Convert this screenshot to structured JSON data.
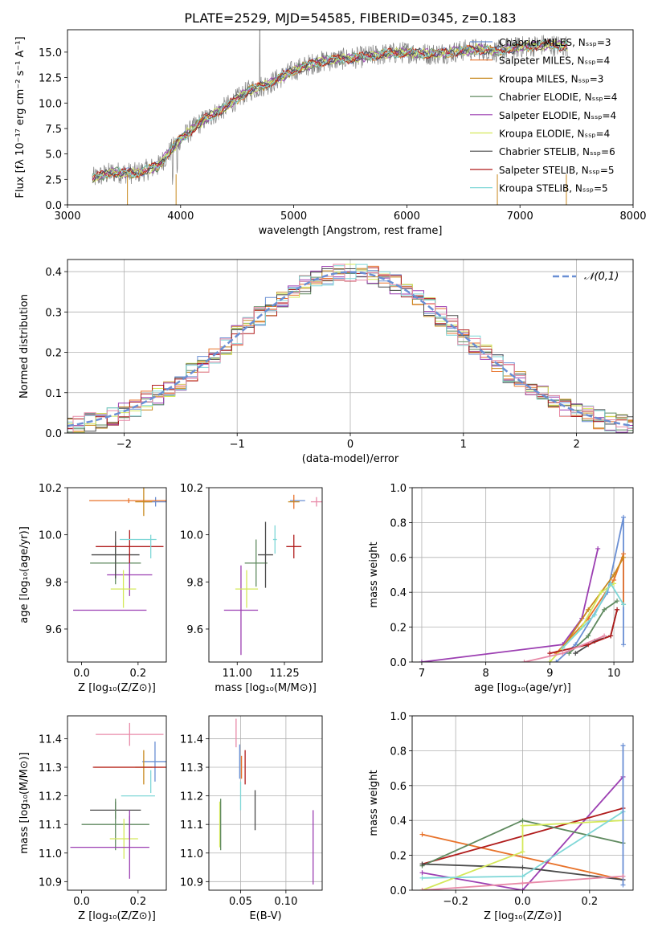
{
  "title": "PLATE=2529, MJD=54585, FIBERID=0345, z=0.183",
  "colors": {
    "Chabrier MILES": "#6a8fd4",
    "Salpeter MILES": "#e8722a",
    "Kroupa MILES": "#c8891e",
    "Chabrier ELODIE": "#5f8a5f",
    "Salpeter ELODIE": "#9c3fb2",
    "Kroupa ELODIE": "#d4e85a",
    "Chabrier STELIB": "#4a4a4a",
    "Salpeter STELIB": "#b01c1c",
    "Kroupa STELIB": "#7fd7d7",
    "pink": "#e88aa8",
    "normal_curve": "#6a8fd4"
  },
  "chart_data": [
    {
      "id": "spectrum",
      "type": "line",
      "xlabel": "wavelength [Angstrom, rest frame]",
      "ylabel": "Flux [fλ 10⁻¹⁷ erg cm⁻² s⁻¹ A⁻¹]",
      "xlim": [
        3000,
        8000
      ],
      "ylim": [
        0,
        17.2
      ],
      "xticks": [
        "3000",
        "4000",
        "5000",
        "6000",
        "7000",
        "8000"
      ],
      "yticks": [
        "0.0",
        "2.5",
        "5.0",
        "7.5",
        "10.0",
        "12.5",
        "15.0"
      ],
      "legend_position": "top-right",
      "legend": [
        "Chabrier MILES, Nₛₛₚ=3",
        "Salpeter MILES, Nₛₛₚ=4",
        "Kroupa MILES, Nₛₛₚ=3",
        "Chabrier ELODIE, Nₛₛₚ=4",
        "Salpeter ELODIE, Nₛₛₚ=4",
        "Kroupa ELODIE, Nₛₛₚ=4",
        "Chabrier STELIB, Nₛₛₚ=6",
        "Salpeter STELIB, Nₛₛₚ=5",
        "Kroupa STELIB, Nₛₛₚ=5"
      ],
      "continuum": {
        "x": [
          3220,
          3400,
          3600,
          3800,
          4000,
          4200,
          4400,
          4600,
          4800,
          5000,
          5200,
          5400,
          5600,
          5800,
          6000,
          6200,
          6400,
          6600,
          6800,
          7000,
          7200,
          7400
        ],
        "y": [
          2.6,
          3.2,
          3.1,
          3.8,
          6.5,
          8.3,
          9.6,
          11.2,
          12.0,
          13.2,
          14.0,
          14.3,
          14.5,
          14.8,
          15.0,
          14.8,
          15.0,
          15.3,
          15.1,
          15.5,
          15.7,
          15.6
        ]
      }
    },
    {
      "id": "residuals",
      "type": "histogram",
      "xlabel": "(data-model)/error",
      "ylabel": "Normed distribution",
      "xlim": [
        -2.5,
        2.5
      ],
      "ylim": [
        0,
        0.43
      ],
      "xticks": [
        "−2",
        "−1",
        "0",
        "1",
        "2"
      ],
      "yticks": [
        "0.0",
        "0.1",
        "0.2",
        "0.3",
        "0.4"
      ],
      "legend_position": "top-right",
      "legend": [
        "𝒩(0,1)"
      ],
      "bin_width": 0.1
    },
    {
      "id": "age-vs-Z",
      "type": "errorbar",
      "xlabel": "Z [log₁₀(Z/Z⊙)]",
      "ylabel": "age  [log₁₀(age/yr)]",
      "xlim": [
        -0.05,
        0.3
      ],
      "ylim": [
        9.46,
        10.2
      ],
      "xticks": [
        "0.0",
        "0.2"
      ],
      "xtick_values": [
        0.0,
        0.2
      ],
      "yticks": [
        "9.6",
        "9.8",
        "10.0",
        "10.2"
      ],
      "ytick_values": [
        9.6,
        9.8,
        10.0,
        10.2
      ],
      "points": [
        {
          "c": "Chabrier MILES",
          "x": 0.262,
          "xe": 0.045,
          "y": 10.14,
          "ye": 0.02
        },
        {
          "c": "Salpeter MILES",
          "x": 0.167,
          "xe": 0.14,
          "y": 10.145,
          "ye": 0.01
        },
        {
          "c": "Kroupa MILES",
          "x": 0.22,
          "xe": 0.03,
          "y": 10.14,
          "ye": 0.06
        },
        {
          "c": "Chabrier ELODIE",
          "x": 0.12,
          "xe": 0.09,
          "y": 9.88,
          "ye": 0.09
        },
        {
          "c": "Salpeter ELODIE",
          "x": 0.17,
          "xe": 0.08,
          "y": 9.83,
          "ye": 0.09
        },
        {
          "c": "Salpeter ELODIE",
          "x": 0.1,
          "xe": 0.13,
          "y": 9.68,
          "ye": 0.0
        },
        {
          "c": "Kroupa ELODIE",
          "x": 0.148,
          "xe": 0.045,
          "y": 9.77,
          "ye": 0.08
        },
        {
          "c": "Chabrier STELIB",
          "x": 0.12,
          "xe": 0.085,
          "y": 9.915,
          "ye": 0.1
        },
        {
          "c": "Salpeter STELIB",
          "x": 0.17,
          "xe": 0.12,
          "y": 9.95,
          "ye": 0.0
        },
        {
          "c": "Salpeter STELIB",
          "x": 0.17,
          "xe": 0.0,
          "y": 9.95,
          "ye": 0.07
        },
        {
          "c": "Kroupa STELIB",
          "x": 0.2,
          "xe": 0.065,
          "y": 9.98,
          "ye": 0.0
        },
        {
          "c": "Kroupa STELIB",
          "x": 0.245,
          "xe": 0.0,
          "y": 9.95,
          "ye": 0.05
        }
      ]
    },
    {
      "id": "age-vs-mass",
      "type": "errorbar",
      "xlabel": "mass [log₁₀(M/M⊙)]",
      "ylabel": "",
      "xlim": [
        10.85,
        11.45
      ],
      "ylim": [
        9.46,
        10.2
      ],
      "xticks": [
        "11.00",
        "11.25"
      ],
      "xtick_values": [
        11.0,
        11.25
      ],
      "yticks": [
        "9.6",
        "9.8",
        "10.0",
        "10.2"
      ],
      "ytick_values": [
        9.6,
        9.8,
        10.0,
        10.2
      ],
      "points": [
        {
          "c": "Chabrier MILES",
          "x": 11.32,
          "xe": 0.04,
          "y": 10.145,
          "ye": 0.0
        },
        {
          "c": "Salpeter MILES",
          "x": 11.3,
          "xe": 0.0,
          "y": 10.14,
          "ye": 0.03
        },
        {
          "c": "Kroupa MILES",
          "x": 11.3,
          "xe": 0.03,
          "y": 10.14,
          "ye": 0.0
        },
        {
          "c": "Chabrier ELODIE",
          "x": 11.1,
          "xe": 0.06,
          "y": 9.88,
          "ye": 0.1
        },
        {
          "c": "Salpeter ELODIE",
          "x": 11.02,
          "xe": 0.0,
          "y": 9.68,
          "ye": 0.19
        },
        {
          "c": "Salpeter ELODIE",
          "x": 11.02,
          "xe": 0.09,
          "y": 9.68,
          "ye": 0.0
        },
        {
          "c": "Kroupa ELODIE",
          "x": 11.05,
          "xe": 0.06,
          "y": 9.77,
          "ye": 0.08
        },
        {
          "c": "Chabrier STELIB",
          "x": 11.15,
          "xe": 0.04,
          "y": 9.915,
          "ye": 0.14
        },
        {
          "c": "Salpeter STELIB",
          "x": 11.3,
          "xe": 0.04,
          "y": 9.95,
          "ye": 0.05
        },
        {
          "c": "Kroupa STELIB",
          "x": 11.2,
          "xe": 0.01,
          "y": 9.98,
          "ye": 0.06
        },
        {
          "c": "pink",
          "x": 11.42,
          "xe": 0.03,
          "y": 10.14,
          "ye": 0.02
        }
      ]
    },
    {
      "id": "massweight-vs-age",
      "type": "line",
      "xlabel": "age  [log₁₀(age/yr)]",
      "ylabel": "mass weight",
      "xlim": [
        6.85,
        10.3
      ],
      "ylim": [
        0,
        1.0
      ],
      "xticks": [
        "7",
        "8",
        "9",
        "10"
      ],
      "xtick_values": [
        7,
        8,
        9,
        10
      ],
      "yticks": [
        "0.0",
        "0.2",
        "0.4",
        "0.6",
        "0.8",
        "1.0"
      ],
      "ytick_values": [
        0,
        0.2,
        0.4,
        0.6,
        0.8,
        1.0
      ],
      "series": [
        {
          "c": "Salpeter ELODIE",
          "x": [
            7.0,
            9.2,
            9.5,
            9.75
          ],
          "y": [
            0.0,
            0.1,
            0.25,
            0.65
          ]
        },
        {
          "c": "Chabrier MILES",
          "x": [
            9.1,
            9.4,
            9.9,
            10.15,
            10.15
          ],
          "y": [
            0.0,
            0.1,
            0.4,
            0.83,
            0.1
          ]
        },
        {
          "c": "Salpeter MILES",
          "x": [
            9.1,
            9.6,
            10.0,
            10.15,
            10.15
          ],
          "y": [
            0.05,
            0.25,
            0.47,
            0.62,
            0.33
          ]
        },
        {
          "c": "Kroupa MILES",
          "x": [
            9.2,
            9.6,
            10.0,
            10.15
          ],
          "y": [
            0.08,
            0.3,
            0.5,
            0.6
          ]
        },
        {
          "c": "Kroupa ELODIE",
          "x": [
            9.0,
            9.5,
            9.8,
            10.0
          ],
          "y": [
            0.0,
            0.2,
            0.4,
            0.45
          ]
        },
        {
          "c": "Chabrier ELODIE",
          "x": [
            9.3,
            9.6,
            9.85,
            10.05
          ],
          "y": [
            0.05,
            0.15,
            0.3,
            0.35
          ]
        },
        {
          "c": "Chabrier STELIB",
          "x": [
            9.4,
            9.7,
            9.95,
            10.05
          ],
          "y": [
            0.05,
            0.12,
            0.15,
            0.3
          ]
        },
        {
          "c": "Salpeter STELIB",
          "x": [
            9.0,
            9.6,
            9.95,
            10.05
          ],
          "y": [
            0.05,
            0.1,
            0.15,
            0.3
          ]
        },
        {
          "c": "Kroupa STELIB",
          "x": [
            9.2,
            9.7,
            9.95,
            10.15
          ],
          "y": [
            0.08,
            0.27,
            0.45,
            0.33
          ]
        },
        {
          "c": "pink",
          "x": [
            8.6,
            9.2,
            9.85
          ],
          "y": [
            0.0,
            0.05,
            0.15
          ]
        }
      ]
    },
    {
      "id": "mass-vs-Z",
      "type": "errorbar",
      "xlabel": "Z [log₁₀(Z/Z⊙)]",
      "ylabel": "mass [log₁₀(M/M⊙)]",
      "xlim": [
        -0.05,
        0.3
      ],
      "ylim": [
        10.87,
        11.48
      ],
      "xticks": [
        "0.0",
        "0.2"
      ],
      "xtick_values": [
        0.0,
        0.2
      ],
      "yticks": [
        "10.9",
        "11.0",
        "11.1",
        "11.2",
        "11.3",
        "11.4"
      ],
      "ytick_values": [
        10.9,
        11.0,
        11.1,
        11.2,
        11.3,
        11.4
      ],
      "points": [
        {
          "c": "pink",
          "x": 0.17,
          "xe": 0.12,
          "y": 11.415,
          "ye": 0.04
        },
        {
          "c": "Chabrier MILES",
          "x": 0.26,
          "xe": 0.045,
          "y": 11.32,
          "ye": 0.07
        },
        {
          "c": "Salpeter MILES",
          "x": 0.17,
          "xe": 0.125,
          "y": 11.3,
          "ye": 0.0
        },
        {
          "c": "Kroupa MILES",
          "x": 0.22,
          "xe": 0.03,
          "y": 11.3,
          "ye": 0.06
        },
        {
          "c": "Salpeter STELIB",
          "x": 0.17,
          "xe": 0.13,
          "y": 11.3,
          "ye": 0.0
        },
        {
          "c": "Kroupa STELIB",
          "x": 0.2,
          "xe": 0.06,
          "y": 11.2,
          "ye": 0.0
        },
        {
          "c": "Kroupa STELIB",
          "x": 0.245,
          "xe": 0.0,
          "y": 11.25,
          "ye": 0.04
        },
        {
          "c": "Chabrier STELIB",
          "x": 0.12,
          "xe": 0.09,
          "y": 11.15,
          "ye": 0.03
        },
        {
          "c": "Chabrier ELODIE",
          "x": 0.12,
          "xe": 0.12,
          "y": 11.1,
          "ye": 0.09
        },
        {
          "c": "Kroupa ELODIE",
          "x": 0.15,
          "xe": 0.05,
          "y": 11.05,
          "ye": 0.07
        },
        {
          "c": "Salpeter ELODIE",
          "x": 0.1,
          "xe": 0.14,
          "y": 11.02,
          "ye": 0.0
        },
        {
          "c": "Salpeter ELODIE",
          "x": 0.17,
          "xe": 0.0,
          "y": 11.02,
          "ye": 0.11
        },
        {
          "c": "Salpeter ELODIE",
          "x": 0.17,
          "xe": 0.0,
          "y": 11.1,
          "ye": 0.05
        }
      ]
    },
    {
      "id": "mass-vs-EBV",
      "type": "errorbar",
      "xlabel": "E(B-V)",
      "ylabel": "",
      "xlim": [
        0.015,
        0.14
      ],
      "ylim": [
        10.87,
        11.48
      ],
      "xticks": [
        "0.05",
        "0.10"
      ],
      "xtick_values": [
        0.05,
        0.1
      ],
      "yticks": [
        "10.9",
        "11.0",
        "11.1",
        "11.2",
        "11.3",
        "11.4"
      ],
      "ytick_values": [
        10.9,
        11.0,
        11.1,
        11.2,
        11.3,
        11.4
      ],
      "points": [
        {
          "c": "pink",
          "x": 0.045,
          "xe": 0.0,
          "y": 11.42,
          "ye": 0.05
        },
        {
          "c": "Chabrier MILES",
          "x": 0.049,
          "xe": 0.0,
          "y": 11.32,
          "ye": 0.06
        },
        {
          "c": "Salpeter MILES",
          "x": 0.051,
          "xe": 0.0,
          "y": 11.3,
          "ye": 0.04
        },
        {
          "c": "Salpeter STELIB",
          "x": 0.055,
          "xe": 0.0,
          "y": 11.3,
          "ye": 0.06
        },
        {
          "c": "Kroupa STELIB",
          "x": 0.05,
          "xe": 0.0,
          "y": 11.2,
          "ye": 0.05
        },
        {
          "c": "Chabrier STELIB",
          "x": 0.066,
          "xe": 0.0,
          "y": 11.15,
          "ye": 0.07
        },
        {
          "c": "Kroupa ELODIE",
          "x": 0.027,
          "xe": 0.0,
          "y": 11.1,
          "ye": 0.08
        },
        {
          "c": "Chabrier ELODIE",
          "x": 0.028,
          "xe": 0.0,
          "y": 11.1,
          "ye": 0.09
        },
        {
          "c": "Salpeter ELODIE",
          "x": 0.13,
          "xe": 0.0,
          "y": 11.02,
          "ye": 0.13
        }
      ]
    },
    {
      "id": "massweight-vs-Z",
      "type": "line",
      "xlabel": "Z [log₁₀(Z/Z⊙)]",
      "ylabel": "mass weight",
      "xlim": [
        -0.33,
        0.33
      ],
      "ylim": [
        0,
        1.0
      ],
      "xticks": [
        "−0.2",
        "0.0",
        "0.2"
      ],
      "xtick_values": [
        -0.2,
        0.0,
        0.2
      ],
      "yticks": [
        "0.0",
        "0.2",
        "0.4",
        "0.6",
        "0.8",
        "1.0"
      ],
      "ytick_values": [
        0,
        0.2,
        0.4,
        0.6,
        0.8,
        1.0
      ],
      "series": [
        {
          "c": "Salpeter MILES",
          "x": [
            -0.3,
            0.3
          ],
          "y": [
            0.32,
            0.06
          ]
        },
        {
          "c": "Salpeter ELODIE",
          "x": [
            -0.3,
            0.0,
            0.3
          ],
          "y": [
            0.1,
            0.0,
            0.65
          ]
        },
        {
          "c": "Salpeter STELIB",
          "x": [
            -0.3,
            0.3
          ],
          "y": [
            0.15,
            0.47
          ]
        },
        {
          "c": "Chabrier ELODIE",
          "x": [
            -0.3,
            0.0,
            0.3
          ],
          "y": [
            0.14,
            0.4,
            0.27
          ]
        },
        {
          "c": "Chabrier STELIB",
          "x": [
            -0.3,
            0.0,
            0.3
          ],
          "y": [
            0.15,
            0.13,
            0.06
          ]
        },
        {
          "c": "Kroupa ELODIE",
          "x": [
            -0.3,
            0.0,
            0.0,
            0.3
          ],
          "y": [
            0.0,
            0.22,
            0.37,
            0.4
          ]
        },
        {
          "c": "Kroupa STELIB",
          "x": [
            -0.3,
            0.0,
            0.3
          ],
          "y": [
            0.07,
            0.08,
            0.45
          ]
        },
        {
          "c": "Chabrier MILES",
          "x": [
            0.3,
            0.3
          ],
          "y": [
            0.83,
            0.03
          ]
        },
        {
          "c": "pink",
          "x": [
            -0.3,
            0.0,
            0.3
          ],
          "y": [
            0.0,
            0.04,
            0.08
          ]
        }
      ]
    }
  ]
}
